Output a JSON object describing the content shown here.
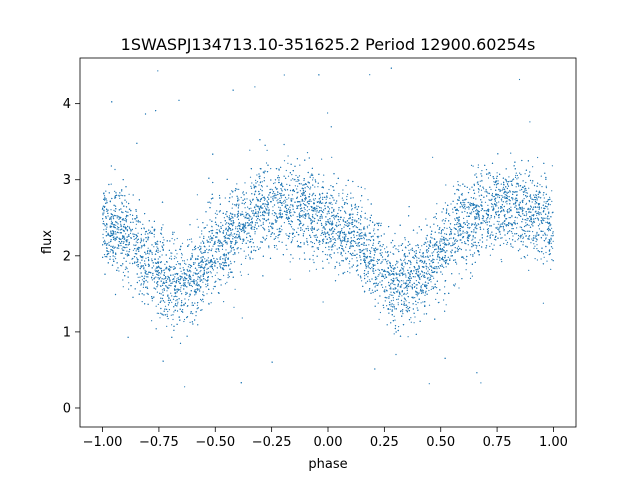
{
  "chart_data": {
    "type": "scatter",
    "title": "1SWASPJ134713.10-351625.2 Period 12900.60254s",
    "xlabel": "phase",
    "ylabel": "flux",
    "xlim": [
      -1.1,
      1.1
    ],
    "ylim": [
      -0.25,
      4.6
    ],
    "x_ticks": [
      -1.0,
      -0.75,
      -0.5,
      -0.25,
      0.0,
      0.25,
      0.5,
      0.75,
      1.0
    ],
    "x_tick_labels": [
      "−1.00",
      "−0.75",
      "−0.50",
      "−0.25",
      "0.00",
      "0.25",
      "0.50",
      "0.75",
      "1.00"
    ],
    "y_ticks": [
      0,
      1,
      2,
      3,
      4
    ],
    "y_tick_labels": [
      "0",
      "1",
      "2",
      "3",
      "4"
    ],
    "grid": false,
    "legend": "none",
    "series": [
      {
        "color": "#1f77b4",
        "marker_size": 0.6,
        "point_count_estimate": 40000,
        "x_range": [
          -1.0,
          1.0
        ],
        "profile_phase": [
          -1.0,
          -0.9,
          -0.8,
          -0.7,
          -0.6,
          -0.5,
          -0.4,
          -0.3,
          -0.2,
          -0.1,
          0.0,
          0.1,
          0.2,
          0.3,
          0.4,
          0.5,
          0.6,
          0.7,
          0.8,
          0.9,
          1.0
        ],
        "profile_mean_flux": [
          2.4,
          2.3,
          1.95,
          1.65,
          1.7,
          2.05,
          2.4,
          2.6,
          2.65,
          2.6,
          2.4,
          2.3,
          1.95,
          1.65,
          1.7,
          2.05,
          2.4,
          2.6,
          2.65,
          2.6,
          2.4
        ],
        "scatter_sigma": 0.28,
        "outlier_range": [
          0.0,
          4.5
        ]
      }
    ]
  }
}
